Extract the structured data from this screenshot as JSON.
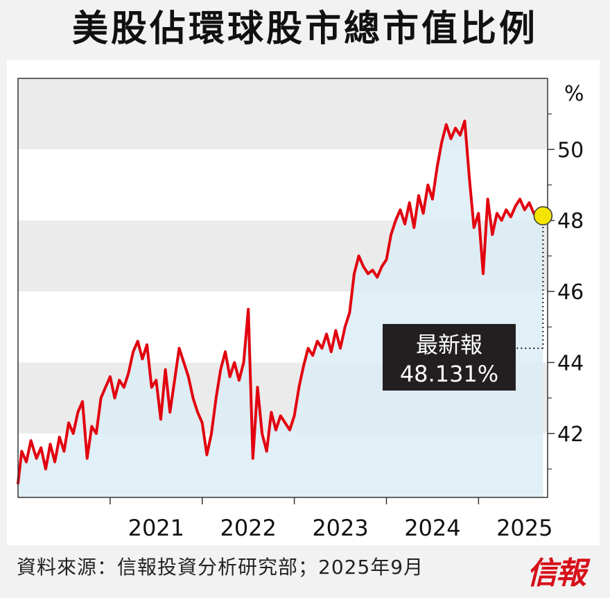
{
  "chart_data": {
    "type": "area",
    "title": "美股佔環球股市總市值比例",
    "ylabel": "%",
    "ylim": [
      40.2,
      52
    ],
    "yticks": [
      42,
      44,
      46,
      48,
      50
    ],
    "xlim": [
      2020.0,
      2025.75
    ],
    "year_labels": [
      "2021",
      "2022",
      "2023",
      "2024",
      "2025"
    ],
    "line_color": "#e2000f",
    "fill_color": "#dcecf5",
    "band_color": "#ebebeb",
    "grid": false,
    "latest": {
      "label": "最新報",
      "value_text": "48.131%",
      "x": 2025.7,
      "y": 48.131,
      "marker_color": "#f5e400"
    },
    "series": [
      {
        "values": [
          [
            2020.0,
            40.6
          ],
          [
            2020.04,
            41.5
          ],
          [
            2020.09,
            41.2
          ],
          [
            2020.14,
            41.8
          ],
          [
            2020.2,
            41.3
          ],
          [
            2020.25,
            41.6
          ],
          [
            2020.3,
            41.0
          ],
          [
            2020.35,
            41.7
          ],
          [
            2020.4,
            41.2
          ],
          [
            2020.45,
            41.9
          ],
          [
            2020.5,
            41.5
          ],
          [
            2020.55,
            42.3
          ],
          [
            2020.6,
            42.0
          ],
          [
            2020.65,
            42.6
          ],
          [
            2020.7,
            42.9
          ],
          [
            2020.75,
            41.3
          ],
          [
            2020.8,
            42.2
          ],
          [
            2020.85,
            42.0
          ],
          [
            2020.9,
            43.0
          ],
          [
            2020.95,
            43.3
          ],
          [
            2021.0,
            43.6
          ],
          [
            2021.05,
            43.0
          ],
          [
            2021.1,
            43.5
          ],
          [
            2021.15,
            43.3
          ],
          [
            2021.2,
            43.7
          ],
          [
            2021.25,
            44.3
          ],
          [
            2021.3,
            44.6
          ],
          [
            2021.35,
            44.1
          ],
          [
            2021.4,
            44.5
          ],
          [
            2021.45,
            43.3
          ],
          [
            2021.5,
            43.5
          ],
          [
            2021.55,
            42.4
          ],
          [
            2021.6,
            43.8
          ],
          [
            2021.65,
            42.6
          ],
          [
            2021.7,
            43.5
          ],
          [
            2021.75,
            44.4
          ],
          [
            2021.8,
            44.0
          ],
          [
            2021.85,
            43.6
          ],
          [
            2021.9,
            43.0
          ],
          [
            2021.95,
            42.6
          ],
          [
            2022.0,
            42.3
          ],
          [
            2022.05,
            41.4
          ],
          [
            2022.1,
            42.0
          ],
          [
            2022.15,
            43.0
          ],
          [
            2022.2,
            43.8
          ],
          [
            2022.25,
            44.3
          ],
          [
            2022.3,
            43.6
          ],
          [
            2022.35,
            44.0
          ],
          [
            2022.4,
            43.5
          ],
          [
            2022.45,
            44.0
          ],
          [
            2022.5,
            45.5
          ],
          [
            2022.55,
            41.3
          ],
          [
            2022.6,
            43.3
          ],
          [
            2022.65,
            42.0
          ],
          [
            2022.7,
            41.5
          ],
          [
            2022.75,
            42.6
          ],
          [
            2022.8,
            42.1
          ],
          [
            2022.85,
            42.5
          ],
          [
            2022.9,
            42.3
          ],
          [
            2022.95,
            42.1
          ],
          [
            2023.0,
            42.5
          ],
          [
            2023.05,
            43.3
          ],
          [
            2023.1,
            43.9
          ],
          [
            2023.15,
            44.4
          ],
          [
            2023.2,
            44.2
          ],
          [
            2023.25,
            44.6
          ],
          [
            2023.3,
            44.4
          ],
          [
            2023.35,
            44.8
          ],
          [
            2023.4,
            44.3
          ],
          [
            2023.45,
            44.9
          ],
          [
            2023.5,
            44.4
          ],
          [
            2023.55,
            45.0
          ],
          [
            2023.6,
            45.4
          ],
          [
            2023.65,
            46.5
          ],
          [
            2023.7,
            47.0
          ],
          [
            2023.75,
            46.7
          ],
          [
            2023.8,
            46.5
          ],
          [
            2023.85,
            46.6
          ],
          [
            2023.9,
            46.4
          ],
          [
            2023.95,
            46.7
          ],
          [
            2024.0,
            46.9
          ],
          [
            2024.05,
            47.6
          ],
          [
            2024.1,
            48.0
          ],
          [
            2024.15,
            48.3
          ],
          [
            2024.2,
            47.9
          ],
          [
            2024.25,
            48.5
          ],
          [
            2024.3,
            47.8
          ],
          [
            2024.35,
            48.7
          ],
          [
            2024.4,
            48.2
          ],
          [
            2024.45,
            49.0
          ],
          [
            2024.5,
            48.6
          ],
          [
            2024.55,
            49.5
          ],
          [
            2024.6,
            50.2
          ],
          [
            2024.65,
            50.7
          ],
          [
            2024.7,
            50.3
          ],
          [
            2024.75,
            50.6
          ],
          [
            2024.8,
            50.4
          ],
          [
            2024.85,
            50.8
          ],
          [
            2024.9,
            49.2
          ],
          [
            2024.95,
            47.8
          ],
          [
            2025.0,
            48.2
          ],
          [
            2025.05,
            46.5
          ],
          [
            2025.1,
            48.6
          ],
          [
            2025.15,
            47.6
          ],
          [
            2025.2,
            48.2
          ],
          [
            2025.25,
            48.0
          ],
          [
            2025.3,
            48.3
          ],
          [
            2025.35,
            48.1
          ],
          [
            2025.4,
            48.4
          ],
          [
            2025.45,
            48.6
          ],
          [
            2025.5,
            48.3
          ],
          [
            2025.55,
            48.5
          ],
          [
            2025.6,
            48.2
          ],
          [
            2025.65,
            48.0
          ],
          [
            2025.7,
            48.131
          ]
        ]
      }
    ]
  },
  "source_note": "資料來源：信報投資分析研究部；2025年9月",
  "brand_logo_text": "信報"
}
